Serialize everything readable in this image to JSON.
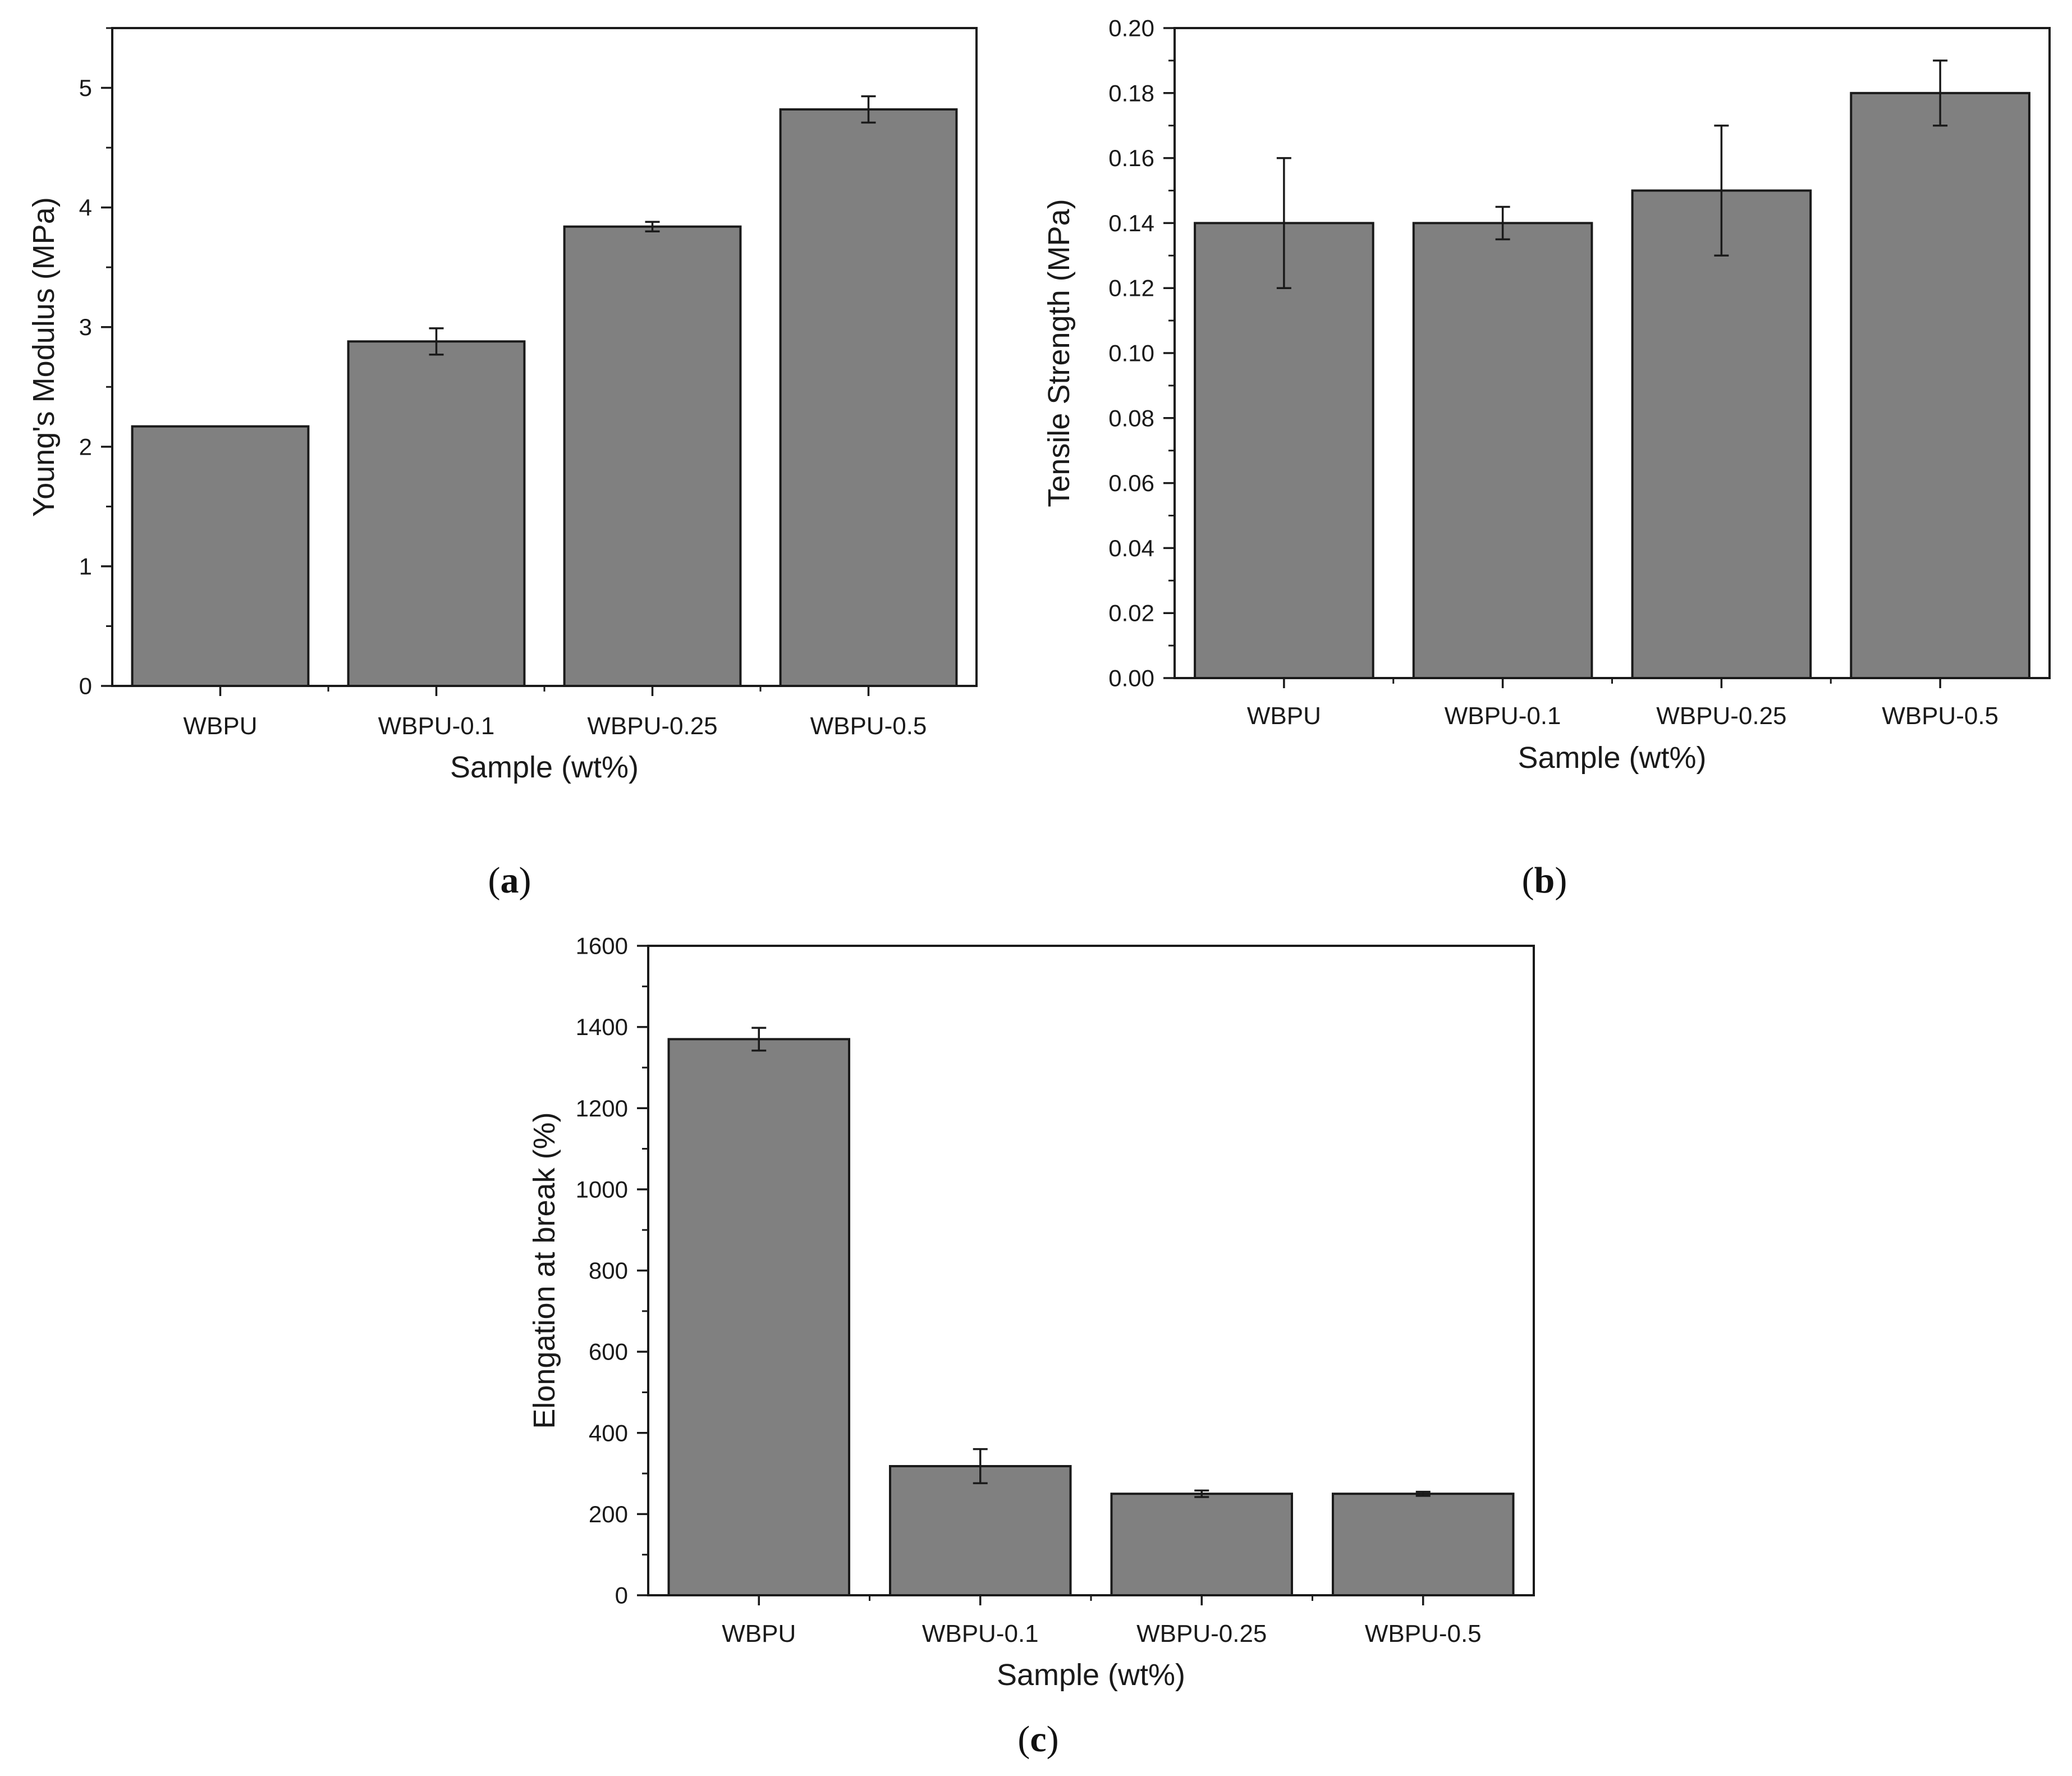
{
  "colors": {
    "bar_fill": "#808080",
    "bar_stroke": "#1a1a1a",
    "axis": "#1a1a1a",
    "error_bar": "#1a1a1a",
    "background": "#ffffff"
  },
  "chart_data": [
    {
      "id": "a",
      "panel_label_open": "(",
      "panel_label_letter": "a",
      "panel_label_close": ")",
      "type": "bar",
      "title": "",
      "xlabel": "Sample (wt%)",
      "ylabel": "Young's Modulus (MPa)",
      "ylim": [
        0,
        5.5
      ],
      "yticks": [
        0,
        1,
        2,
        3,
        4,
        5
      ],
      "ytick_labels": [
        "0",
        "1",
        "2",
        "3",
        "4",
        "5"
      ],
      "minor_step": 0.5,
      "categories": [
        "WBPU",
        "WBPU-0.1",
        "WBPU-0.25",
        "WBPU-0.5"
      ],
      "values": [
        2.17,
        2.88,
        3.84,
        4.82
      ],
      "errors": [
        0,
        0.11,
        0.04,
        0.11
      ]
    },
    {
      "id": "b",
      "panel_label_open": "(",
      "panel_label_letter": "b",
      "panel_label_close": ")",
      "type": "bar",
      "title": "",
      "xlabel": "Sample (wt%)",
      "ylabel": "Tensile Strength (MPa)",
      "ylim": [
        0,
        0.2
      ],
      "yticks": [
        0,
        0.02,
        0.04,
        0.06,
        0.08,
        0.1,
        0.12,
        0.14,
        0.16,
        0.18,
        0.2
      ],
      "ytick_labels": [
        "0.00",
        "0.02",
        "0.04",
        "0.06",
        "0.08",
        "0.10",
        "0.12",
        "0.14",
        "0.16",
        "0.18",
        "0.20"
      ],
      "minor_step": 0.01,
      "categories": [
        "WBPU",
        "WBPU-0.1",
        "WBPU-0.25",
        "WBPU-0.5"
      ],
      "values": [
        0.14,
        0.14,
        0.15,
        0.18
      ],
      "errors": [
        0.02,
        0.005,
        0.02,
        0.01
      ]
    },
    {
      "id": "c",
      "panel_label_open": "(",
      "panel_label_letter": "c",
      "panel_label_close": ")",
      "type": "bar",
      "title": "",
      "xlabel": "Sample (wt%)",
      "ylabel": "Elongation at break (%)",
      "ylim": [
        0,
        1600
      ],
      "yticks": [
        0,
        200,
        400,
        600,
        800,
        1000,
        1200,
        1400,
        1600
      ],
      "ytick_labels": [
        "0",
        "200",
        "400",
        "600",
        "800",
        "1000",
        "1200",
        "1400",
        "1600"
      ],
      "minor_step": 100,
      "categories": [
        "WBPU",
        "WBPU-0.1",
        "WBPU-0.25",
        "WBPU-0.5"
      ],
      "values": [
        1370,
        318,
        250,
        250
      ],
      "errors": [
        28,
        42,
        8,
        5
      ]
    }
  ]
}
